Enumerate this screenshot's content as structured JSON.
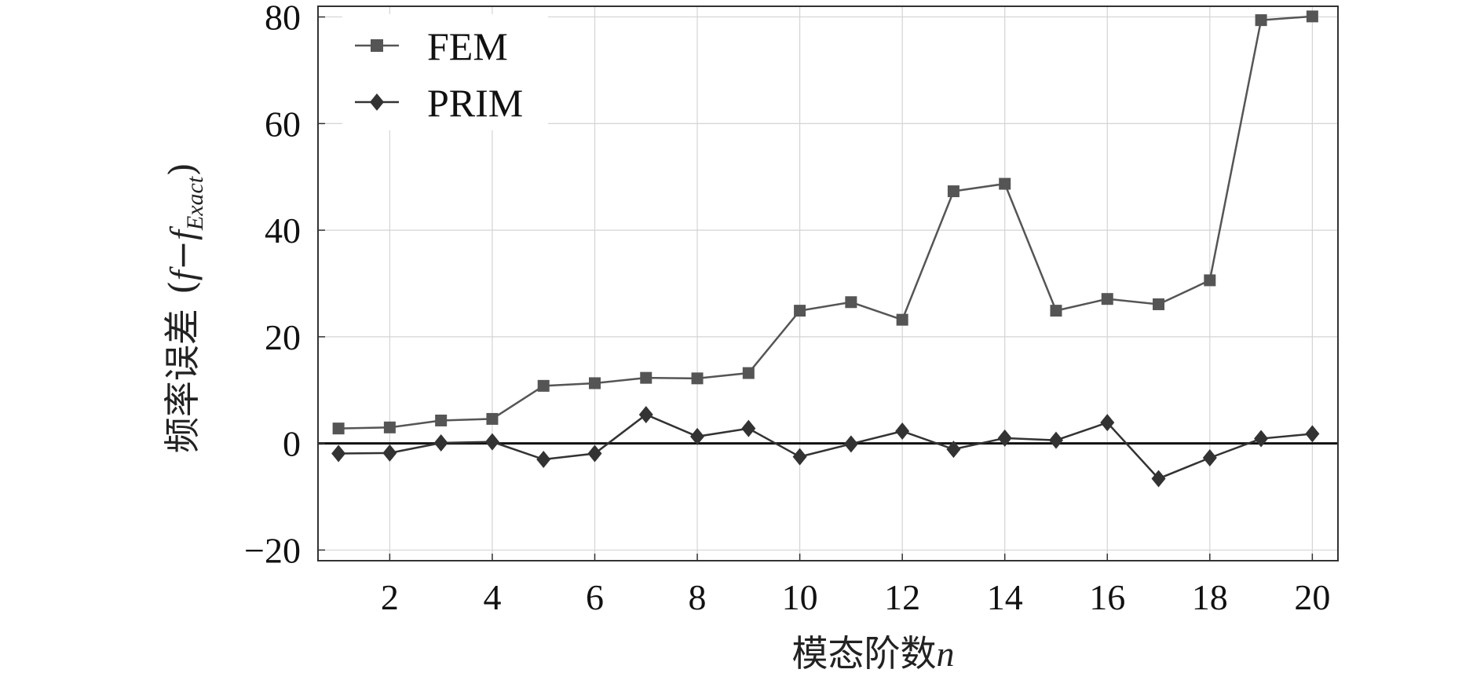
{
  "chart_data": {
    "type": "line",
    "xlabel": "模态阶数",
    "xlabel_var": "n",
    "ylabel": "频率误差",
    "ylabel_expr": {
      "open": "(",
      "f": "f",
      "minus": "−",
      "sub": "Exact",
      "close": ")"
    },
    "x": [
      1,
      2,
      3,
      4,
      5,
      6,
      7,
      8,
      9,
      10,
      11,
      12,
      13,
      14,
      15,
      16,
      17,
      18,
      19,
      20
    ],
    "xticks": [
      2,
      4,
      6,
      8,
      10,
      12,
      14,
      16,
      18,
      20
    ],
    "xtick_labels": [
      "2",
      "4",
      "6",
      "8",
      "10",
      "12",
      "14",
      "16",
      "18",
      "20"
    ],
    "yticks": [
      -20,
      0,
      20,
      40,
      60,
      80
    ],
    "ytick_labels": [
      "−20",
      "0",
      "20",
      "40",
      "60",
      "80"
    ],
    "xlim": [
      0.6,
      20.5
    ],
    "ylim": [
      -22,
      82
    ],
    "grid": true,
    "zero_line": true,
    "legend_position": "top-left",
    "series": [
      {
        "name": "FEM",
        "marker": "square",
        "color": "#555555",
        "values": [
          2.8,
          3.0,
          4.3,
          4.6,
          10.8,
          11.3,
          12.3,
          12.2,
          13.2,
          24.9,
          26.5,
          23.2,
          47.3,
          48.7,
          24.9,
          27.1,
          26.1,
          30.6,
          79.4,
          80.1
        ]
      },
      {
        "name": "PRIM",
        "marker": "diamond",
        "color": "#333333",
        "values": [
          -1.9,
          -1.8,
          0.1,
          0.3,
          -3.0,
          -1.9,
          5.4,
          1.3,
          2.8,
          -2.5,
          -0.1,
          2.3,
          -1.1,
          1.0,
          0.6,
          3.9,
          -6.6,
          -2.7,
          0.9,
          1.8
        ]
      }
    ]
  }
}
